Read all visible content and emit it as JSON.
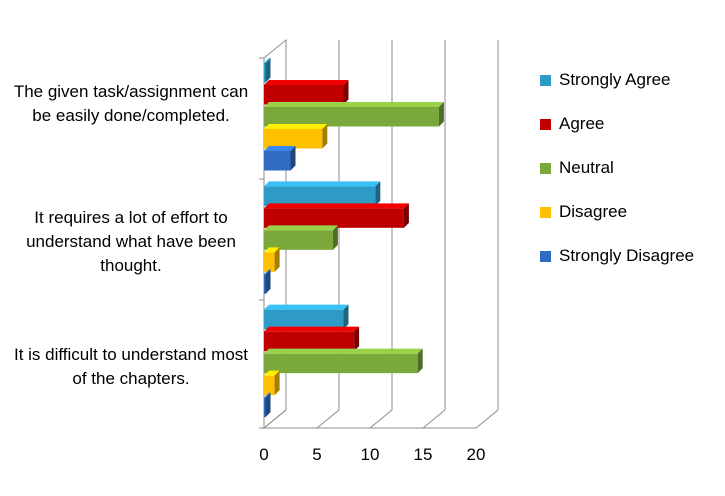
{
  "chart_data": {
    "type": "bar",
    "orientation": "horizontal",
    "style": "3d",
    "categories": [
      "The given task/assignment can be easily done/completed.",
      "It requires a lot of effort to understand what have been thought.",
      "It is difficult to understand most of the chapters."
    ],
    "series": [
      {
        "name": "Strongly Agree",
        "color": "#2e9ac6",
        "values": [
          0,
          10.5,
          7.5
        ]
      },
      {
        "name": "Agree",
        "color": "#c00000",
        "values": [
          7.5,
          13.2,
          8.5
        ]
      },
      {
        "name": "Neutral",
        "color": "#7aa83a",
        "values": [
          16.5,
          6.5,
          14.5
        ]
      },
      {
        "name": "Disagree",
        "color": "#ffc000",
        "values": [
          5.5,
          1,
          1
        ]
      },
      {
        "name": "Strongly Disagree",
        "color": "#2f6bc0",
        "values": [
          2.5,
          0,
          0
        ]
      }
    ],
    "xticks": [
      "0",
      "5",
      "10",
      "15",
      "20"
    ],
    "xlim": [
      0,
      20
    ],
    "legend": "right",
    "grid": true
  }
}
